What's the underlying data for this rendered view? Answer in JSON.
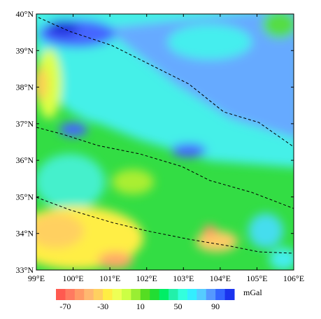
{
  "map": {
    "lon_ticks": [
      {
        "value": 99,
        "label": "99°E"
      },
      {
        "value": 100,
        "label": "100°E"
      },
      {
        "value": 101,
        "label": "101°E"
      },
      {
        "value": 102,
        "label": "102°E"
      },
      {
        "value": 103,
        "label": "103°E"
      },
      {
        "value": 104,
        "label": "104°E"
      },
      {
        "value": 105,
        "label": "105°E"
      },
      {
        "value": 106,
        "label": "106°E"
      }
    ],
    "lat_ticks": [
      {
        "value": 33,
        "label": "33°N"
      },
      {
        "value": 34,
        "label": "34°N"
      },
      {
        "value": 35,
        "label": "35°N"
      },
      {
        "value": 36,
        "label": "36°N"
      },
      {
        "value": 37,
        "label": "37°N"
      },
      {
        "value": 38,
        "label": "38°N"
      },
      {
        "value": 39,
        "label": "39°N"
      },
      {
        "value": 40,
        "label": "40°N"
      }
    ],
    "lonlim": [
      99,
      106
    ],
    "latlim": [
      33,
      40
    ]
  },
  "colorbar": {
    "lim": [
      -80,
      110
    ],
    "ticks": [
      -70,
      -30,
      10,
      50,
      90
    ],
    "unit": "mGal",
    "colors": [
      "#ff5a50",
      "#ff7a60",
      "#ff9966",
      "#ffb870",
      "#ffd060",
      "#ffee44",
      "#eeff55",
      "#ccff44",
      "#99ee33",
      "#55dd22",
      "#22dd33",
      "#00ee66",
      "#22f0aa",
      "#33ffdd",
      "#33eeff",
      "#55ccff",
      "#5599ff",
      "#3366ff",
      "#1a33ee"
    ]
  }
}
